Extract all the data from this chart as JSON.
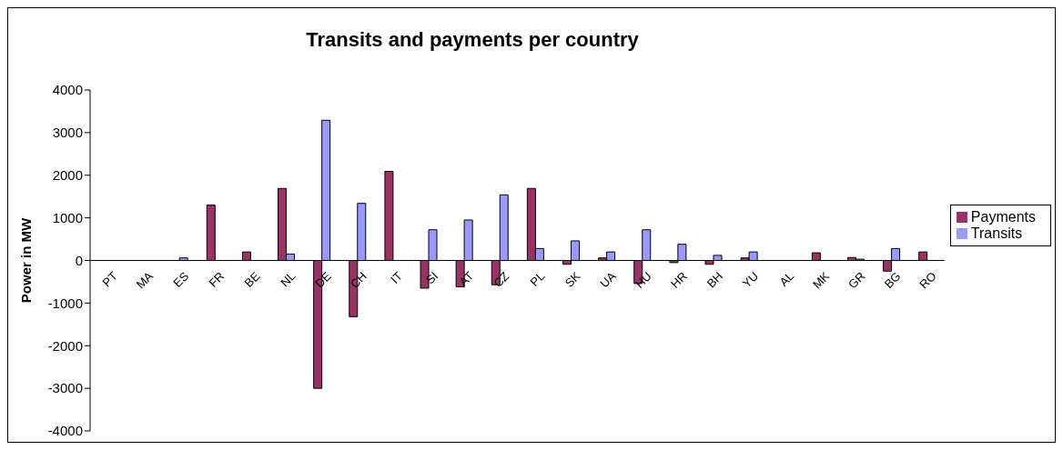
{
  "chart_data": {
    "type": "bar",
    "title": "Transits and payments per country",
    "ylabel": "Power in MW",
    "categories": [
      "PT",
      "MA",
      "ES",
      "FR",
      "BE",
      "NL",
      "DE",
      "CH",
      "IT",
      "SI",
      "AT",
      "CZ",
      "PL",
      "SK",
      "UA",
      "HU",
      "HR",
      "BH",
      "YU",
      "AL",
      "MK",
      "GR",
      "BG",
      "RO"
    ],
    "series": [
      {
        "name": "Payments",
        "color": "#993366",
        "values": [
          null,
          null,
          null,
          1300,
          200,
          1690,
          -3000,
          -1320,
          2090,
          -650,
          -620,
          -570,
          1690,
          -90,
          60,
          -540,
          -50,
          -90,
          60,
          null,
          180,
          70,
          -250,
          200
        ]
      },
      {
        "name": "Transits",
        "color": "#9999ff",
        "values": [
          0,
          0,
          60,
          0,
          0,
          150,
          3290,
          1340,
          0,
          720,
          950,
          1540,
          280,
          460,
          200,
          720,
          380,
          120,
          200,
          0,
          0,
          30,
          280,
          0
        ]
      }
    ],
    "ylim": [
      -4000,
      4000
    ],
    "yticks": [
      -4000,
      -3000,
      -2000,
      -1000,
      0,
      1000,
      2000,
      3000,
      4000
    ],
    "grid": false,
    "legend": "right"
  }
}
